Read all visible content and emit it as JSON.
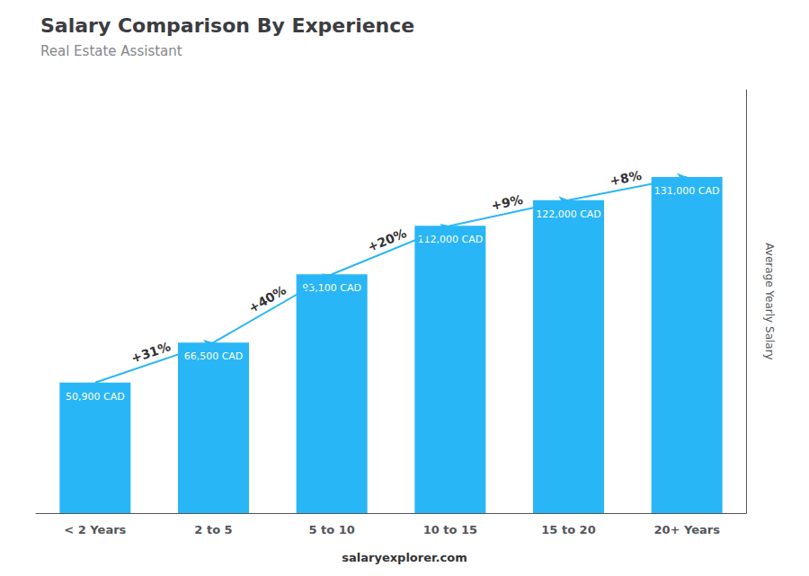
{
  "chart_data": {
    "type": "bar",
    "title": "Salary Comparison By Experience",
    "subtitle": "Real Estate Assistant",
    "categories": [
      "< 2 Years",
      "2 to 5",
      "5 to 10",
      "10 to 15",
      "15 to 20",
      "20+ Years"
    ],
    "values": [
      50900,
      66500,
      93100,
      112000,
      122000,
      131000
    ],
    "value_labels": [
      "50,900 CAD",
      "66,500 CAD",
      "93,100 CAD",
      "112,000 CAD",
      "122,000 CAD",
      "131,000 CAD"
    ],
    "data_labels": true,
    "color": "#29B6F6",
    "ylabel": "Average Yearly Salary",
    "ylim": [
      0,
      165000
    ],
    "tick_labels": "x",
    "grid": false,
    "annotations": [
      "+31%",
      "+40%",
      "+20%",
      "+9%",
      "+8%"
    ],
    "footer": "salaryexplorer.com"
  }
}
